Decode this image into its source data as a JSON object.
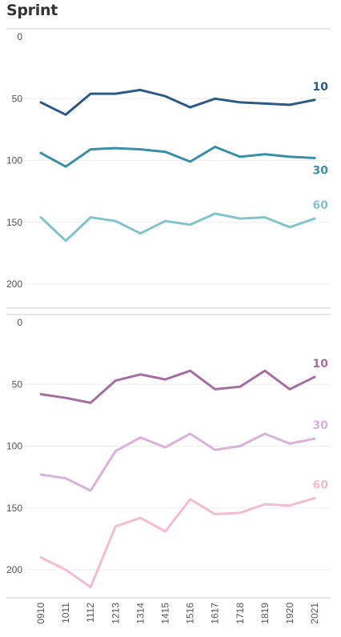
{
  "title": "Sprint",
  "chart_data": [
    {
      "type": "line",
      "ylim": [
        0,
        220
      ],
      "y_inverted": true,
      "yticks": [
        "0",
        "50",
        "100",
        "150",
        "200"
      ],
      "categories": [
        "0910",
        "1011",
        "1112",
        "1213",
        "1314",
        "1415",
        "1516",
        "1617",
        "1718",
        "1819",
        "1920",
        "2021"
      ],
      "series": [
        {
          "name": "10",
          "color": "#2c5a86",
          "values": [
            53,
            63,
            46,
            46,
            43,
            48,
            57,
            50,
            53,
            54,
            55,
            51
          ]
        },
        {
          "name": "30",
          "color": "#3a8fa8",
          "values": [
            94,
            105,
            91,
            90,
            91,
            93,
            101,
            89,
            97,
            95,
            97,
            98
          ]
        },
        {
          "name": "60",
          "color": "#82c4cc",
          "values": [
            146,
            165,
            146,
            149,
            159,
            149,
            152,
            143,
            147,
            146,
            154,
            147
          ]
        }
      ]
    },
    {
      "type": "line",
      "ylim": [
        0,
        220
      ],
      "y_inverted": true,
      "yticks": [
        "0",
        "50",
        "100",
        "150",
        "200"
      ],
      "categories": [
        "0910",
        "1011",
        "1112",
        "1213",
        "1314",
        "1415",
        "1516",
        "1617",
        "1718",
        "1819",
        "1920",
        "2021"
      ],
      "series": [
        {
          "name": "10",
          "color": "#a56ea0",
          "values": [
            58,
            61,
            65,
            47,
            42,
            46,
            39,
            54,
            52,
            39,
            54,
            44
          ]
        },
        {
          "name": "30",
          "color": "#d8b3d8",
          "values": [
            123,
            126,
            136,
            104,
            93,
            101,
            90,
            103,
            100,
            90,
            98,
            94
          ]
        },
        {
          "name": "60",
          "color": "#f3bcd2",
          "values": [
            190,
            200,
            214,
            165,
            158,
            169,
            143,
            155,
            154,
            147,
            148,
            142
          ]
        }
      ]
    }
  ]
}
